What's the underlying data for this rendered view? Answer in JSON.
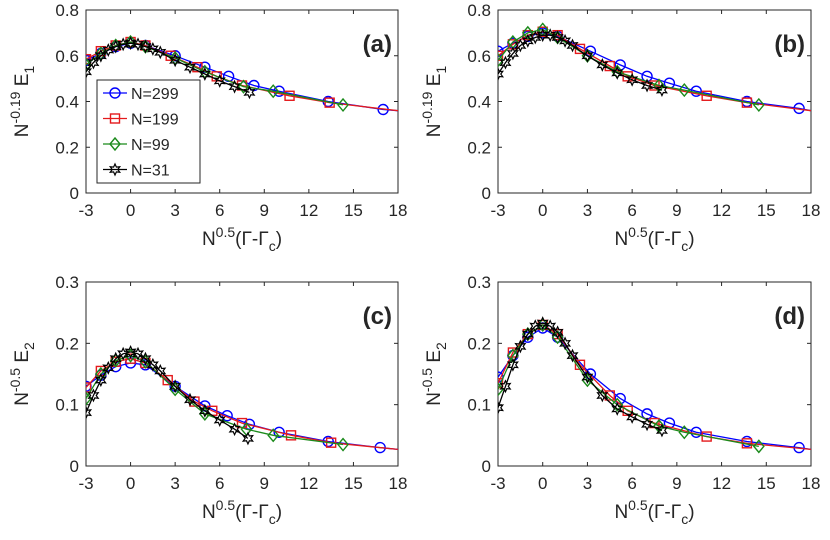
{
  "figure": {
    "legend": [
      "N=299",
      "N=199",
      "N=99",
      "N=31"
    ],
    "colors": {
      "N=299": "#0000ff",
      "N=199": "#e41a1c",
      "N=99": "#1b8a1b",
      "N=31": "#000000"
    }
  },
  "chart_data": [
    {
      "type": "line",
      "panel_label": "(a)",
      "xlabel": "N^0.5(Γ-Γ_c)",
      "ylabel": "N^-0.19 E_1",
      "xlim": [
        -3,
        18
      ],
      "ylim": [
        0,
        0.8
      ],
      "xticks": [
        "-3",
        "0",
        "3",
        "6",
        "9",
        "12",
        "15",
        "18"
      ],
      "yticks": [
        "0",
        "0.2",
        "0.4",
        "0.6",
        "0.8"
      ],
      "legend_position": "left",
      "series": [
        {
          "name": "N=299",
          "marker": "circle",
          "color": "#0000ff",
          "x": [
            -3.0,
            -2.0,
            -1.0,
            0.0,
            1.0,
            3.0,
            5.0,
            6.6,
            8.3,
            10.0,
            13.3,
            17.0,
            18.0
          ],
          "y": [
            0.58,
            0.61,
            0.64,
            0.655,
            0.645,
            0.6,
            0.55,
            0.51,
            0.47,
            0.445,
            0.4,
            0.365,
            0.36
          ]
        },
        {
          "name": "N=199",
          "marker": "square",
          "color": "#e41a1c",
          "x": [
            -3.0,
            -2.0,
            -1.0,
            0.0,
            1.0,
            2.7,
            4.5,
            5.8,
            7.5,
            10.7,
            13.4,
            18.0
          ],
          "y": [
            0.585,
            0.62,
            0.645,
            0.66,
            0.645,
            0.6,
            0.55,
            0.51,
            0.47,
            0.425,
            0.395,
            0.36
          ]
        },
        {
          "name": "N=99",
          "marker": "diamond",
          "color": "#1b8a1b",
          "x": [
            -3.0,
            -2.0,
            -1.0,
            0.0,
            1.0,
            3.0,
            5.0,
            7.6,
            9.6,
            14.3
          ],
          "y": [
            0.56,
            0.61,
            0.645,
            0.66,
            0.64,
            0.59,
            0.53,
            0.465,
            0.445,
            0.385
          ]
        },
        {
          "name": "N=31",
          "marker": "star",
          "color": "#000000",
          "x": [
            -3.0,
            -2.5,
            -2.0,
            -1.5,
            -1.0,
            -0.5,
            0.0,
            0.5,
            1.0,
            1.5,
            2.0,
            3.0,
            4.0,
            5.0,
            6.0,
            7.0,
            8.0
          ],
          "y": [
            0.53,
            0.57,
            0.6,
            0.625,
            0.64,
            0.65,
            0.655,
            0.65,
            0.64,
            0.63,
            0.615,
            0.58,
            0.55,
            0.52,
            0.49,
            0.465,
            0.44
          ]
        }
      ]
    },
    {
      "type": "line",
      "panel_label": "(b)",
      "xlabel": "N^0.5(Γ-Γ_c)",
      "ylabel": "N^-0.19 E_1",
      "xlim": [
        -3,
        18
      ],
      "ylim": [
        0,
        0.8
      ],
      "xticks": [
        "-3",
        "0",
        "3",
        "6",
        "9",
        "12",
        "15",
        "18"
      ],
      "yticks": [
        "0",
        "0.2",
        "0.4",
        "0.6",
        "0.8"
      ],
      "series": [
        {
          "name": "N=299",
          "marker": "circle",
          "color": "#0000ff",
          "x": [
            -3.0,
            -2.0,
            -1.0,
            0.0,
            1.0,
            3.2,
            5.2,
            7.0,
            8.5,
            10.3,
            13.7,
            17.2,
            18.0
          ],
          "y": [
            0.62,
            0.655,
            0.685,
            0.7,
            0.685,
            0.62,
            0.56,
            0.51,
            0.48,
            0.445,
            0.4,
            0.37,
            0.36
          ]
        },
        {
          "name": "N=199",
          "marker": "square",
          "color": "#e41a1c",
          "x": [
            -3.0,
            -2.0,
            -1.0,
            0.0,
            1.0,
            2.5,
            4.5,
            5.7,
            7.5,
            11.0,
            13.7,
            18.0
          ],
          "y": [
            0.6,
            0.65,
            0.69,
            0.705,
            0.69,
            0.63,
            0.555,
            0.51,
            0.47,
            0.425,
            0.395,
            0.36
          ]
        },
        {
          "name": "N=99",
          "marker": "diamond",
          "color": "#1b8a1b",
          "x": [
            -3.0,
            -2.0,
            -1.0,
            0.0,
            1.0,
            3.0,
            5.0,
            7.8,
            9.5,
            14.5
          ],
          "y": [
            0.58,
            0.66,
            0.7,
            0.715,
            0.68,
            0.6,
            0.53,
            0.47,
            0.45,
            0.385
          ]
        },
        {
          "name": "N=31",
          "marker": "star",
          "color": "#000000",
          "x": [
            -3.0,
            -2.5,
            -2.0,
            -1.5,
            -1.0,
            -0.5,
            0.0,
            0.5,
            1.0,
            1.5,
            2.0,
            3.0,
            4.0,
            5.0,
            6.0,
            7.0,
            8.0
          ],
          "y": [
            0.52,
            0.57,
            0.61,
            0.645,
            0.665,
            0.68,
            0.69,
            0.69,
            0.68,
            0.665,
            0.645,
            0.6,
            0.56,
            0.525,
            0.495,
            0.47,
            0.45
          ]
        }
      ]
    },
    {
      "type": "line",
      "panel_label": "(c)",
      "xlabel": "N^0.5(Γ-Γ_c)",
      "ylabel": "N^-0.5 E_2",
      "xlim": [
        -3,
        18
      ],
      "ylim": [
        0,
        0.3
      ],
      "xticks": [
        "-3",
        "0",
        "3",
        "6",
        "9",
        "12",
        "15",
        "18"
      ],
      "yticks": [
        "0",
        "0.1",
        "0.2",
        "0.3"
      ],
      "series": [
        {
          "name": "N=299",
          "marker": "circle",
          "color": "#0000ff",
          "x": [
            -3.0,
            -2.0,
            -1.0,
            0.0,
            1.0,
            3.0,
            5.0,
            6.5,
            8.0,
            10.0,
            13.3,
            16.8,
            18.0
          ],
          "y": [
            0.13,
            0.148,
            0.162,
            0.168,
            0.165,
            0.13,
            0.098,
            0.082,
            0.068,
            0.055,
            0.04,
            0.03,
            0.027
          ]
        },
        {
          "name": "N=199",
          "marker": "square",
          "color": "#e41a1c",
          "x": [
            -3.0,
            -2.0,
            -1.0,
            0.0,
            1.0,
            2.5,
            4.3,
            5.5,
            7.5,
            10.8,
            13.5,
            18.0
          ],
          "y": [
            0.128,
            0.155,
            0.17,
            0.175,
            0.168,
            0.14,
            0.105,
            0.09,
            0.07,
            0.05,
            0.038,
            0.027
          ]
        },
        {
          "name": "N=99",
          "marker": "diamond",
          "color": "#1b8a1b",
          "x": [
            -3.0,
            -2.0,
            -1.0,
            0.0,
            1.0,
            3.0,
            5.0,
            7.8,
            9.6,
            14.3
          ],
          "y": [
            0.11,
            0.15,
            0.172,
            0.18,
            0.17,
            0.125,
            0.085,
            0.06,
            0.05,
            0.035
          ]
        },
        {
          "name": "N=31",
          "marker": "star",
          "color": "#000000",
          "x": [
            -3.0,
            -2.5,
            -2.0,
            -1.5,
            -1.0,
            -0.5,
            0.0,
            0.5,
            1.0,
            1.5,
            2.0,
            3.0,
            4.0,
            5.0,
            6.0,
            7.0,
            7.9
          ],
          "y": [
            0.087,
            0.115,
            0.14,
            0.16,
            0.175,
            0.183,
            0.186,
            0.183,
            0.175,
            0.165,
            0.155,
            0.13,
            0.108,
            0.09,
            0.075,
            0.06,
            0.045
          ]
        }
      ]
    },
    {
      "type": "line",
      "panel_label": "(d)",
      "xlabel": "N^0.5(Γ-Γ_c)",
      "ylabel": "N^-0.5 E_2",
      "xlim": [
        -3,
        18
      ],
      "ylim": [
        0,
        0.3
      ],
      "xticks": [
        "-3",
        "0",
        "3",
        "6",
        "9",
        "12",
        "15",
        "18"
      ],
      "yticks": [
        "0",
        "0.1",
        "0.2",
        "0.3"
      ],
      "series": [
        {
          "name": "N=299",
          "marker": "circle",
          "color": "#0000ff",
          "x": [
            -3.0,
            -2.0,
            -1.0,
            0.0,
            1.0,
            3.2,
            5.2,
            7.0,
            8.5,
            10.3,
            13.7,
            17.2,
            18.0
          ],
          "y": [
            0.145,
            0.18,
            0.21,
            0.225,
            0.21,
            0.15,
            0.11,
            0.085,
            0.07,
            0.055,
            0.04,
            0.03,
            0.027
          ]
        },
        {
          "name": "N=199",
          "marker": "square",
          "color": "#e41a1c",
          "x": [
            -3.0,
            -2.0,
            -1.0,
            0.0,
            1.0,
            2.5,
            4.5,
            5.7,
            7.5,
            11.0,
            13.7,
            18.0
          ],
          "y": [
            0.135,
            0.185,
            0.215,
            0.23,
            0.215,
            0.165,
            0.115,
            0.09,
            0.07,
            0.048,
            0.037,
            0.027
          ]
        },
        {
          "name": "N=99",
          "marker": "diamond",
          "color": "#1b8a1b",
          "x": [
            -3.0,
            -2.0,
            -1.0,
            0.0,
            1.0,
            3.0,
            5.0,
            7.8,
            9.5,
            14.5
          ],
          "y": [
            0.125,
            0.18,
            0.215,
            0.23,
            0.21,
            0.14,
            0.1,
            0.065,
            0.055,
            0.032
          ]
        },
        {
          "name": "N=31",
          "marker": "star",
          "color": "#000000",
          "x": [
            -3.0,
            -2.5,
            -2.0,
            -1.5,
            -1.0,
            -0.5,
            0.0,
            0.5,
            1.0,
            1.5,
            2.0,
            3.0,
            4.0,
            5.0,
            6.0,
            7.0,
            8.0
          ],
          "y": [
            0.095,
            0.13,
            0.165,
            0.195,
            0.215,
            0.228,
            0.233,
            0.228,
            0.218,
            0.2,
            0.18,
            0.145,
            0.115,
            0.093,
            0.08,
            0.068,
            0.058
          ]
        }
      ]
    }
  ]
}
